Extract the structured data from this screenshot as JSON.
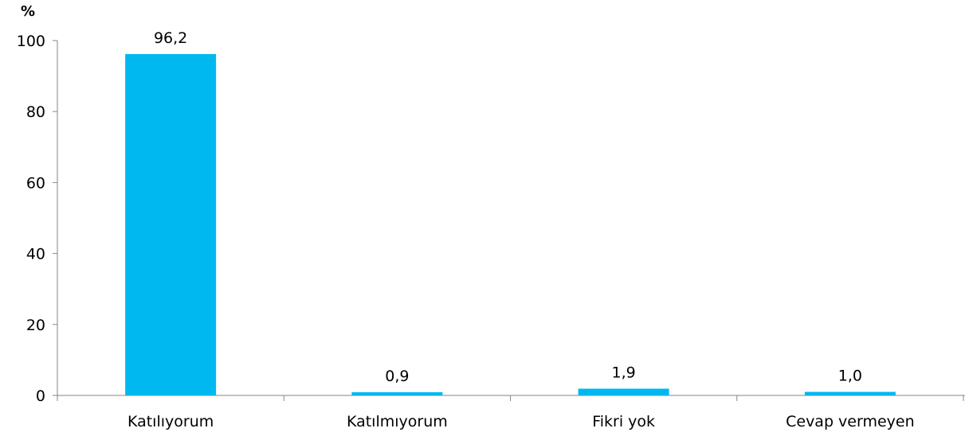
{
  "chart_data": {
    "type": "bar",
    "unit_label": "%",
    "title": "",
    "xlabel": "",
    "ylabel": "%",
    "ylim": [
      0,
      100
    ],
    "yticks": [
      "0",
      "20",
      "40",
      "60",
      "80",
      "100"
    ],
    "yticks_values": [
      0,
      20,
      40,
      60,
      80,
      100
    ],
    "categories": [
      "Katılıyorum",
      "Katılmıyorum",
      "Fikri yok",
      "Cevap vermeyen"
    ],
    "values": [
      96.2,
      0.9,
      1.9,
      1.0
    ],
    "data_labels": [
      "96,2",
      "0,9",
      "1,9",
      "1,0"
    ],
    "bar_color": "#00B8F0",
    "axis_color": "#868686",
    "grid": false,
    "legend": "none"
  }
}
